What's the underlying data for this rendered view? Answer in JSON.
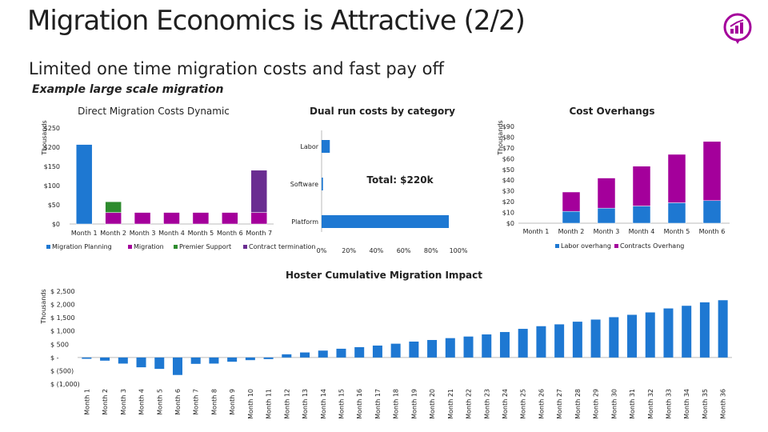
{
  "page": {
    "title": "Migration Economics is Attractive (2/2)",
    "subtitle": "Limited one time migration costs and fast pay off",
    "example_label": "Example large scale migration",
    "logo_icon": "chart-up-icon"
  },
  "colors": {
    "blue": "#1e78d2",
    "green": "#2e8b2e",
    "purple": "#a4009b",
    "violet": "#6a2d91"
  },
  "chart_data": [
    {
      "id": "direct",
      "type": "bar",
      "stacked": true,
      "title": "Direct Migration Costs Dynamic",
      "ylabel": "Thousands",
      "ylim": [
        0,
        250
      ],
      "yticks": [
        "$0",
        "$50",
        "$100",
        "$150",
        "$200",
        "$250"
      ],
      "categories": [
        "Month 1",
        "Month 2",
        "Month 3",
        "Month 4",
        "Month 5",
        "Month 6",
        "Month 7"
      ],
      "series": [
        {
          "name": "Migration Planning",
          "color": "#1e78d2",
          "values": [
            207,
            0,
            0,
            0,
            0,
            0,
            0
          ]
        },
        {
          "name": "Migration",
          "color": "#a4009b",
          "values": [
            0,
            30,
            30,
            30,
            30,
            30,
            30
          ]
        },
        {
          "name": "Premier Support",
          "color": "#2e8b2e",
          "values": [
            0,
            28,
            0,
            0,
            0,
            0,
            0
          ]
        },
        {
          "name": "Contract termination",
          "color": "#6a2d91",
          "values": [
            0,
            0,
            0,
            0,
            0,
            0,
            110
          ]
        }
      ],
      "legend": "bottom"
    },
    {
      "id": "dualrun",
      "type": "bar",
      "orientation": "horizontal",
      "title": "Dual run costs by category",
      "categories": [
        "Labor",
        "Software",
        "Platform"
      ],
      "values": [
        6,
        1,
        93
      ],
      "xlim": [
        0,
        100
      ],
      "xticks": [
        "0%",
        "20%",
        "40%",
        "60%",
        "80%",
        "100%"
      ],
      "annotation": "Total: $220k",
      "color": "#1e78d2"
    },
    {
      "id": "overhang",
      "type": "bar",
      "stacked": true,
      "title": "Cost Overhangs",
      "ylabel": "Thousands",
      "ylim": [
        0,
        90
      ],
      "yticks": [
        "$0",
        "$10",
        "$20",
        "$30",
        "$40",
        "$50",
        "$60",
        "$70",
        "$80",
        "$90"
      ],
      "categories": [
        "Month 1",
        "Month 2",
        "Month 3",
        "Month 4",
        "Month 5",
        "Month 6"
      ],
      "series": [
        {
          "name": "Labor overhang",
          "color": "#1e78d2",
          "values": [
            0,
            11,
            14,
            16,
            19,
            21
          ]
        },
        {
          "name": "Contracts Overhang",
          "color": "#a4009b",
          "values": [
            0,
            18,
            28,
            37,
            45,
            55
          ]
        }
      ],
      "legend": "bottom"
    },
    {
      "id": "hoster",
      "type": "bar",
      "title": "Hoster Cumulative Migration Impact",
      "ylabel": "Thousands",
      "ylim": [
        -1000,
        2500
      ],
      "yticks": [
        "$ (1,000)",
        "$ (500)",
        "$ -",
        "$ 500",
        "$ 1,000",
        "$ 1,500",
        "$ 2,000",
        "$ 2,500"
      ],
      "categories": [
        "Month 1",
        "Month 2",
        "Month 3",
        "Month 4",
        "Month 5",
        "Month 6",
        "Month 7",
        "Month 8",
        "Month 9",
        "Month 10",
        "Month 11",
        "Month 12",
        "Month 13",
        "Month 14",
        "Month 15",
        "Month 16",
        "Month 17",
        "Month 18",
        "Month 19",
        "Month 20",
        "Month 21",
        "Month 22",
        "Month 23",
        "Month 24",
        "Month 25",
        "Month 26",
        "Month 27",
        "Month 28",
        "Month 29",
        "Month 30",
        "Month 31",
        "Month 32",
        "Month 33",
        "Month 34",
        "Month 35",
        "Month 36"
      ],
      "values": [
        -50,
        -120,
        -230,
        -370,
        -430,
        -660,
        -240,
        -230,
        -160,
        -100,
        -60,
        120,
        190,
        260,
        330,
        390,
        450,
        520,
        600,
        660,
        730,
        790,
        870,
        960,
        1080,
        1180,
        1250,
        1350,
        1430,
        1520,
        1610,
        1700,
        1850,
        1950,
        2080,
        2160
      ],
      "color": "#1e78d2"
    }
  ]
}
